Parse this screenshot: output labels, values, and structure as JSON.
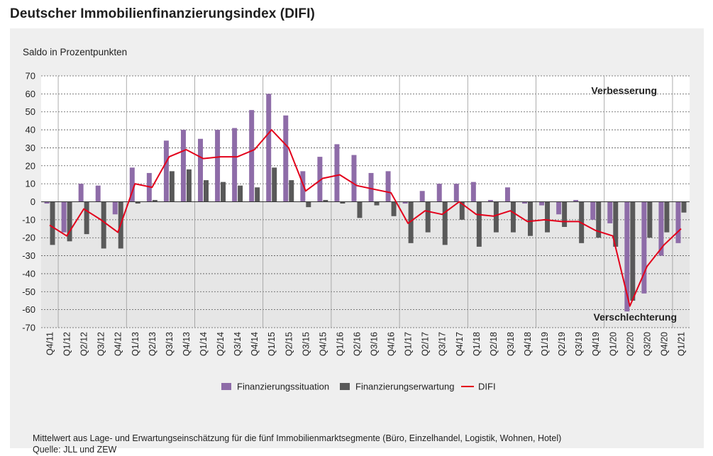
{
  "title": "Deutscher Immobilienfinanzierungsindex (DIFI)",
  "footnote": {
    "line1": "Mittelwert aus Lage- und Erwartungseinschätzung für die fünf Immobilienmarktsegmente (Büro, Einzelhandel, Logistik, Wohnen, Hotel)",
    "line2": "Quelle: JLL und ZEW"
  },
  "chart_data": {
    "type": "bar",
    "ylabel": "Saldo in Prozentpunkten",
    "ylim": [
      -70,
      70
    ],
    "yticks": [
      70,
      60,
      50,
      40,
      30,
      20,
      10,
      0,
      -10,
      -20,
      -30,
      -40,
      -50,
      -60,
      -70
    ],
    "annotations": {
      "top": "Verbesserung",
      "bottom": "Verschlechterung"
    },
    "categories": [
      "Q4/11",
      "Q1/12",
      "Q2/12",
      "Q3/12",
      "Q4/12",
      "Q1/13",
      "Q2/13",
      "Q3/13",
      "Q4/13",
      "Q1/14",
      "Q2/14",
      "Q3/14",
      "Q4/14",
      "Q1/15",
      "Q2/15",
      "Q3/15",
      "Q4/15",
      "Q1/16",
      "Q2/16",
      "Q3/16",
      "Q4/16",
      "Q1/17",
      "Q2/17",
      "Q3/17",
      "Q4/17",
      "Q1/18",
      "Q2/18",
      "Q3/18",
      "Q4/18",
      "Q1/19",
      "Q2/19",
      "Q3/19",
      "Q4/19",
      "Q1/20",
      "Q2/20",
      "Q3/20",
      "Q4/20",
      "Q1/21"
    ],
    "series": [
      {
        "name": "Finanzierungssituation",
        "kind": "bar",
        "color": "#8e6ca8",
        "values": [
          -1,
          -17,
          10,
          9,
          -7,
          19,
          16,
          34,
          40,
          35,
          40,
          41,
          51,
          60,
          48,
          17,
          25,
          32,
          26,
          16,
          17,
          -1,
          6,
          10,
          10,
          11,
          1,
          8,
          -1,
          -2,
          -7,
          1,
          -10,
          -12,
          -61,
          -51,
          -30,
          -23
        ]
      },
      {
        "name": "Finanzierungserwartung",
        "kind": "bar",
        "color": "#595959",
        "values": [
          -24,
          -22,
          -18,
          -26,
          -26,
          -1,
          1,
          17,
          18,
          12,
          11,
          9,
          8,
          19,
          12,
          -3,
          1,
          -1,
          -9,
          -2,
          -8,
          -23,
          -17,
          -24,
          -10,
          -25,
          -17,
          -17,
          -19,
          -17,
          -14,
          -23,
          -20,
          -25,
          -55,
          -20,
          -17,
          -6
        ]
      },
      {
        "name": "DIFI",
        "kind": "line",
        "color": "#e3001b",
        "values": [
          -13,
          -19,
          -4,
          -10,
          -17,
          10,
          8,
          25,
          29,
          24,
          25,
          25,
          29,
          40,
          30,
          6,
          13,
          15,
          9,
          7,
          5,
          -12,
          -5,
          -7,
          0,
          -7,
          -8,
          -5,
          -11,
          -10,
          -11,
          -11,
          -16,
          -19,
          -58,
          -36,
          -24,
          -15
        ]
      }
    ],
    "legend_position": "bottom-center",
    "grid": true
  }
}
